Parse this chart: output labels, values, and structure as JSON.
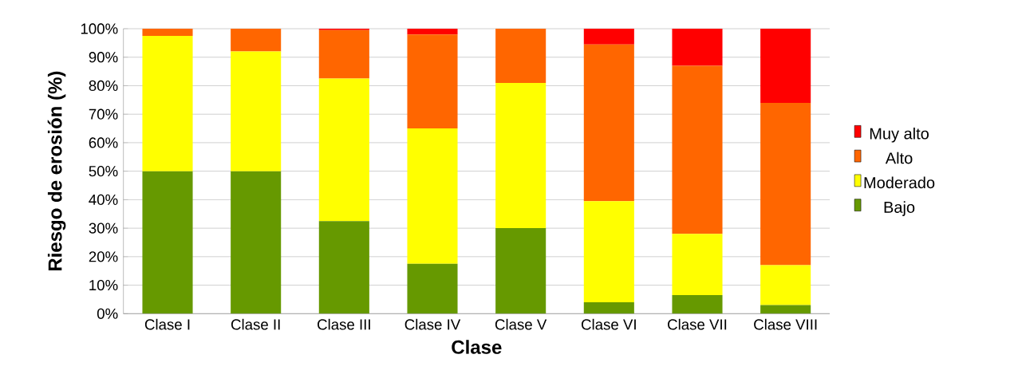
{
  "chart_data": {
    "type": "bar",
    "stacked": true,
    "xlabel": "Clase",
    "ylabel": "Riesgo de erosión (%)",
    "categories": [
      "Clase I",
      "Clase II",
      "Clase III",
      "Clase IV",
      "Clase V",
      "Clase VI",
      "Clase VII",
      "Clase VIII"
    ],
    "series": [
      {
        "name": "Bajo",
        "color": "#669900",
        "values": [
          50,
          50,
          32.5,
          17.5,
          30,
          4,
          6.5,
          3
        ]
      },
      {
        "name": "Moderado",
        "color": "#ffff00",
        "values": [
          47.5,
          42,
          50,
          47.5,
          51,
          35.5,
          21.5,
          14
        ]
      },
      {
        "name": "Alto",
        "color": "#ff6600",
        "values": [
          2.5,
          8,
          17,
          33,
          19,
          55,
          59,
          57
        ]
      },
      {
        "name": "Muy alto",
        "color": "#ff0000",
        "values": [
          0,
          0,
          0.5,
          2,
          0,
          5.5,
          13,
          26
        ]
      }
    ],
    "ylim": [
      0,
      100
    ],
    "yticks": [
      {
        "value": 0,
        "label": "0%"
      },
      {
        "value": 10,
        "label": "10%"
      },
      {
        "value": 20,
        "label": "20%"
      },
      {
        "value": 30,
        "label": "30%"
      },
      {
        "value": 40,
        "label": "40%"
      },
      {
        "value": 50,
        "label": "50%"
      },
      {
        "value": 60,
        "label": "60%"
      },
      {
        "value": 70,
        "label": "70%"
      },
      {
        "value": 80,
        "label": "80%"
      },
      {
        "value": 90,
        "label": "90%"
      },
      {
        "value": 100,
        "label": "100%"
      }
    ],
    "grid": "y",
    "legend": "right"
  }
}
